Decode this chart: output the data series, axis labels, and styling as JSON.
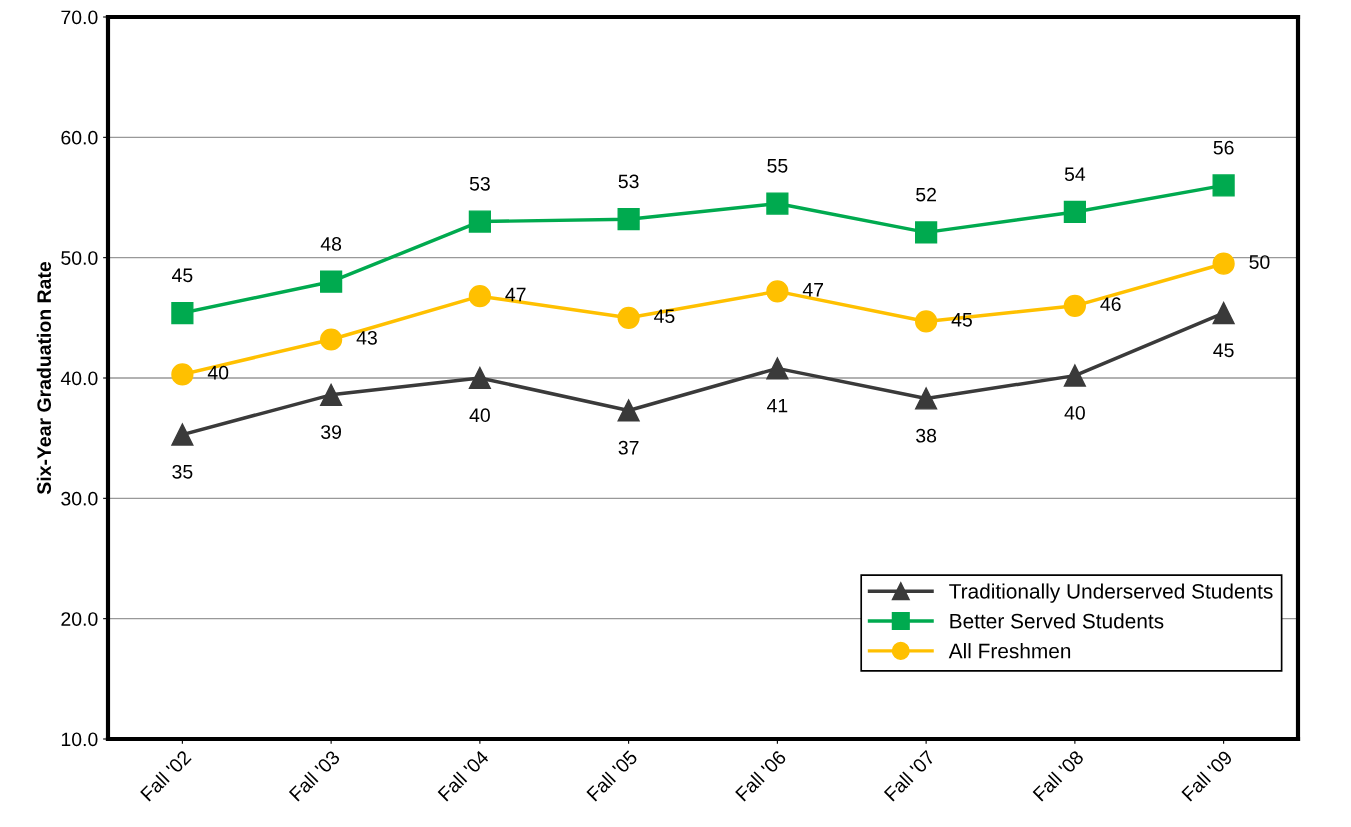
{
  "chart_data": {
    "type": "line",
    "ylabel": "Six-Year Graduation Rate",
    "categories": [
      "Fall '02",
      "Fall '03",
      "Fall '04",
      "Fall '05",
      "Fall '06",
      "Fall '07",
      "Fall '08",
      "Fall '09"
    ],
    "series": [
      {
        "name": "Traditionally Underserved Students",
        "color": "#3a3a3a",
        "marker": "triangle",
        "values": [
          35.3,
          38.6,
          40.0,
          37.3,
          40.8,
          38.3,
          40.2,
          45.4
        ],
        "value_labels": [
          "35",
          "39",
          "40",
          "37",
          "41",
          "38",
          "40",
          "45"
        ]
      },
      {
        "name": "Better Served Students",
        "color": "#00aa4f",
        "marker": "square",
        "values": [
          45.4,
          48.0,
          53.0,
          53.2,
          54.5,
          52.1,
          53.8,
          56.0
        ],
        "value_labels": [
          "45",
          "48",
          "53",
          "53",
          "55",
          "52",
          "54",
          "56"
        ]
      },
      {
        "name": "All Freshmen",
        "color": "#ffc000",
        "marker": "circle",
        "values": [
          40.3,
          43.2,
          46.8,
          45.0,
          47.2,
          44.7,
          46.0,
          49.5
        ],
        "value_labels": [
          "40",
          "43",
          "47",
          "45",
          "47",
          "45",
          "46",
          "50"
        ]
      }
    ],
    "ylim": [
      10,
      70
    ],
    "yticks": [
      {
        "value": 10,
        "label": "10.0"
      },
      {
        "value": 20,
        "label": "20.0"
      },
      {
        "value": 30,
        "label": "30.0"
      },
      {
        "value": 40,
        "label": "40.0"
      },
      {
        "value": 50,
        "label": "50.0"
      },
      {
        "value": 60,
        "label": "60.0"
      },
      {
        "value": 70,
        "label": "70.0"
      }
    ],
    "grid": "y",
    "legend": "bottom right",
    "line_style": "solid"
  }
}
